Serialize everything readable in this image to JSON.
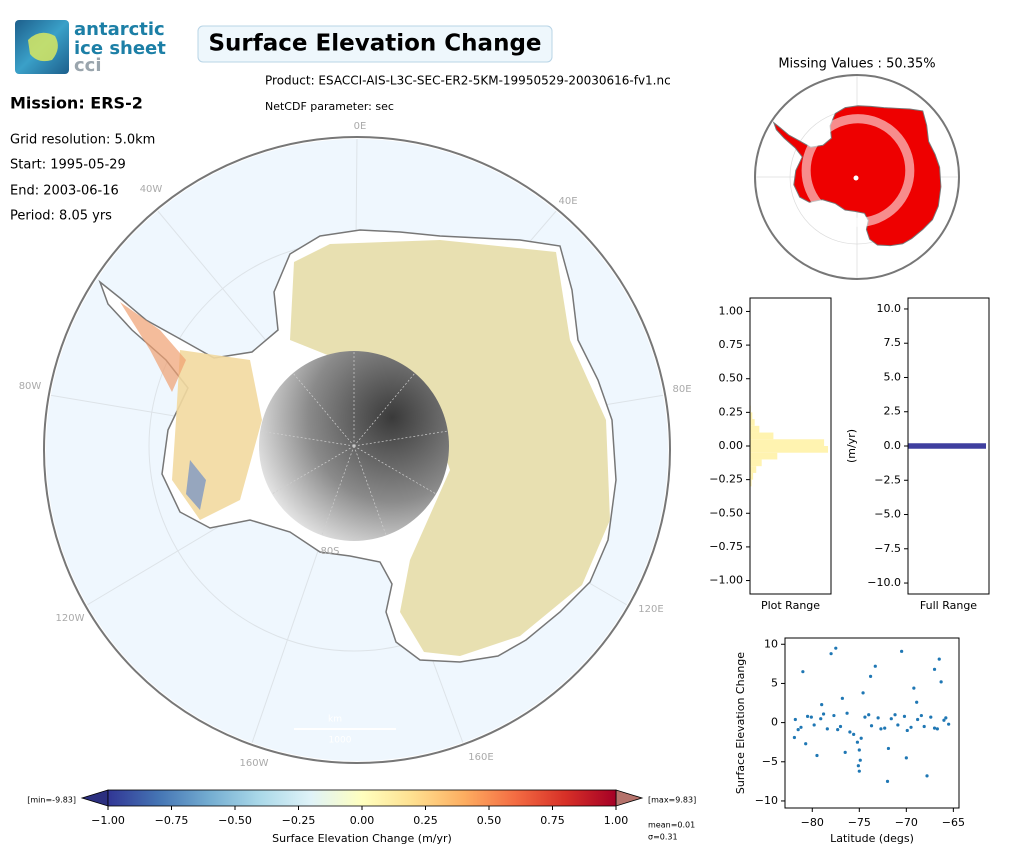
{
  "header": {
    "logo": [
      "antarctic",
      "ice sheet",
      "cci"
    ],
    "title": "Surface Elevation Change",
    "product": "Product: ESACCI-AIS-L3C-SEC-ER2-5KM-19950529-20030616-fv1.nc",
    "parameter": "NetCDF parameter: sec"
  },
  "info": {
    "mission": "Mission: ERS-2",
    "lines": [
      "Grid resolution: 5.0km",
      "Start: 1995-05-29",
      "End: 2003-06-16",
      "Period: 8.05 yrs"
    ]
  },
  "map": {
    "lon_labels": [
      "0E",
      "40E",
      "80E",
      "120E",
      "160E",
      "160W",
      "120W",
      "80W",
      "40W"
    ],
    "lat_label": "80S",
    "scale_unit": "km",
    "scale_length": "1000"
  },
  "missing_map": {
    "title": "Missing Values : 50.35%"
  },
  "chart_data": [
    {
      "type": "colorbar",
      "xlabel": "Surface Elevation Change (m/yr)",
      "xlim": [
        -1,
        1
      ],
      "xticks": [
        {
          "value": -1,
          "label": "−1.00"
        },
        {
          "value": -0.75,
          "label": "−0.75"
        },
        {
          "value": -0.5,
          "label": "−0.50"
        },
        {
          "value": -0.25,
          "label": "−0.25"
        },
        {
          "value": 0,
          "label": "0.00"
        },
        {
          "value": 0.25,
          "label": "0.25"
        },
        {
          "value": 0.5,
          "label": "0.50"
        },
        {
          "value": 0.75,
          "label": "0.75"
        },
        {
          "value": 1,
          "label": "1.00"
        }
      ],
      "colors": [
        "#313695",
        "#4575b4",
        "#74add1",
        "#abd9e9",
        "#e0f3f8",
        "#ffffbf",
        "#fee090",
        "#fdae61",
        "#f46d43",
        "#d73027",
        "#a50026"
      ],
      "extend_colors": [
        "#2b2f7f",
        "#b5726b"
      ],
      "min_label": "[min=-9.83]",
      "max_label": "[max=9.83]",
      "stats": [
        "mean=0.01",
        "σ=0.31"
      ]
    },
    {
      "type": "histogram",
      "xlabel": "Plot Range",
      "color": "#fff3b0",
      "bins": [
        -0.3,
        -0.25,
        -0.2,
        -0.15,
        -0.1,
        -0.05,
        0,
        0.05,
        0.1,
        0.15,
        0.2,
        0.25,
        0.3
      ],
      "counts": [
        2,
        4,
        8,
        15,
        35,
        100,
        95,
        30,
        12,
        6,
        3,
        1
      ],
      "ylim": [
        -1.1,
        1.1
      ],
      "yticks": [
        {
          "value": 1,
          "label": "1.00"
        },
        {
          "value": 0.75,
          "label": "0.75"
        },
        {
          "value": 0.5,
          "label": "0.50"
        },
        {
          "value": 0.25,
          "label": "0.25"
        },
        {
          "value": 0,
          "label": "0.00"
        },
        {
          "value": -0.25,
          "label": "−0.25"
        },
        {
          "value": -0.5,
          "label": "−0.50"
        },
        {
          "value": -0.75,
          "label": "−0.75"
        },
        {
          "value": -1,
          "label": "−1.00"
        }
      ]
    },
    {
      "type": "histogram",
      "xlabel": "Full Range",
      "ylabel": "(m/yr)",
      "color": "#3f3f9f",
      "bins": [
        -0.2,
        0.2
      ],
      "counts": [
        1
      ],
      "ylim": [
        -10.8,
        10.8
      ],
      "yticks": [
        {
          "value": 10,
          "label": "10.0"
        },
        {
          "value": 7.5,
          "label": "7.5"
        },
        {
          "value": 5,
          "label": "5.0"
        },
        {
          "value": 2.5,
          "label": "2.5"
        },
        {
          "value": 0,
          "label": "0.0"
        },
        {
          "value": -2.5,
          "label": "−2.5"
        },
        {
          "value": -5,
          "label": "−5.0"
        },
        {
          "value": -7.5,
          "label": "−7.5"
        },
        {
          "value": -10,
          "label": "−10.0"
        }
      ]
    },
    {
      "type": "scatter",
      "xlabel": "Latitude (degs)",
      "ylabel": "Surface Elevation Change",
      "color": "#1f77b4",
      "xlim": [
        -82.9,
        -64.4
      ],
      "ylim": [
        -10.9,
        10.8
      ],
      "xticks": [
        {
          "value": -80,
          "label": "−80"
        },
        {
          "value": -75,
          "label": "−75"
        },
        {
          "value": -70,
          "label": "−70"
        },
        {
          "value": -65,
          "label": "−65"
        }
      ],
      "yticks": [
        10,
        5,
        0,
        {
          "value": -5,
          "label": "−5"
        },
        {
          "value": -10,
          "label": "−10"
        }
      ],
      "x": [
        -81.8,
        -81.2,
        -80.5,
        -79.8,
        -79.1,
        -78.4,
        -77.7,
        -77.0,
        -76.3,
        -75.6,
        -75.2,
        -75.0,
        -74.8,
        -74.4,
        -73.7,
        -73.0,
        -72.3,
        -71.6,
        -70.9,
        -70.2,
        -69.5,
        -68.8,
        -68.1,
        -67.4,
        -66.7,
        -66.0,
        -65.5,
        -81.5,
        -80.1,
        -78.8,
        -77.3,
        -76.0,
        -74.0,
        -72.7,
        -71.2,
        -69.9,
        -68.4,
        -67.0,
        -65.8,
        -81.0,
        -79.5,
        -78.0,
        -76.8,
        -75.1,
        -75.0,
        -74.9,
        -73.3,
        -71.9,
        -70.5,
        -69.2,
        -67.8,
        -66.3,
        -80.7,
        -77.5,
        -74.6,
        -72.0,
        -68.9,
        -66.5,
        -81.9,
        -79.0,
        -76.5,
        -73.8,
        -70.0,
        -67.0
      ],
      "values": [
        0.4,
        -0.6,
        0.8,
        -0.3,
        0.5,
        -0.8,
        0.9,
        -0.5,
        1.2,
        -1.5,
        -2.5,
        -3.5,
        -2.0,
        0.7,
        -0.4,
        0.6,
        -0.7,
        0.5,
        -0.3,
        0.8,
        -0.6,
        0.4,
        -0.5,
        0.7,
        -0.8,
        0.3,
        -0.2,
        -0.9,
        0.7,
        1.1,
        -0.9,
        -1.2,
        1.0,
        -0.8,
        1.0,
        -1.0,
        0.9,
        -0.7,
        0.6,
        6.5,
        -4.2,
        8.8,
        3.1,
        -5.5,
        -6.2,
        -4.8,
        7.2,
        -3.3,
        9.1,
        4.4,
        -6.8,
        5.2,
        -2.7,
        9.5,
        3.8,
        -7.5,
        2.6,
        8.1,
        -1.9,
        2.3,
        -3.8,
        5.9,
        -4.5,
        6.8
      ]
    }
  ]
}
